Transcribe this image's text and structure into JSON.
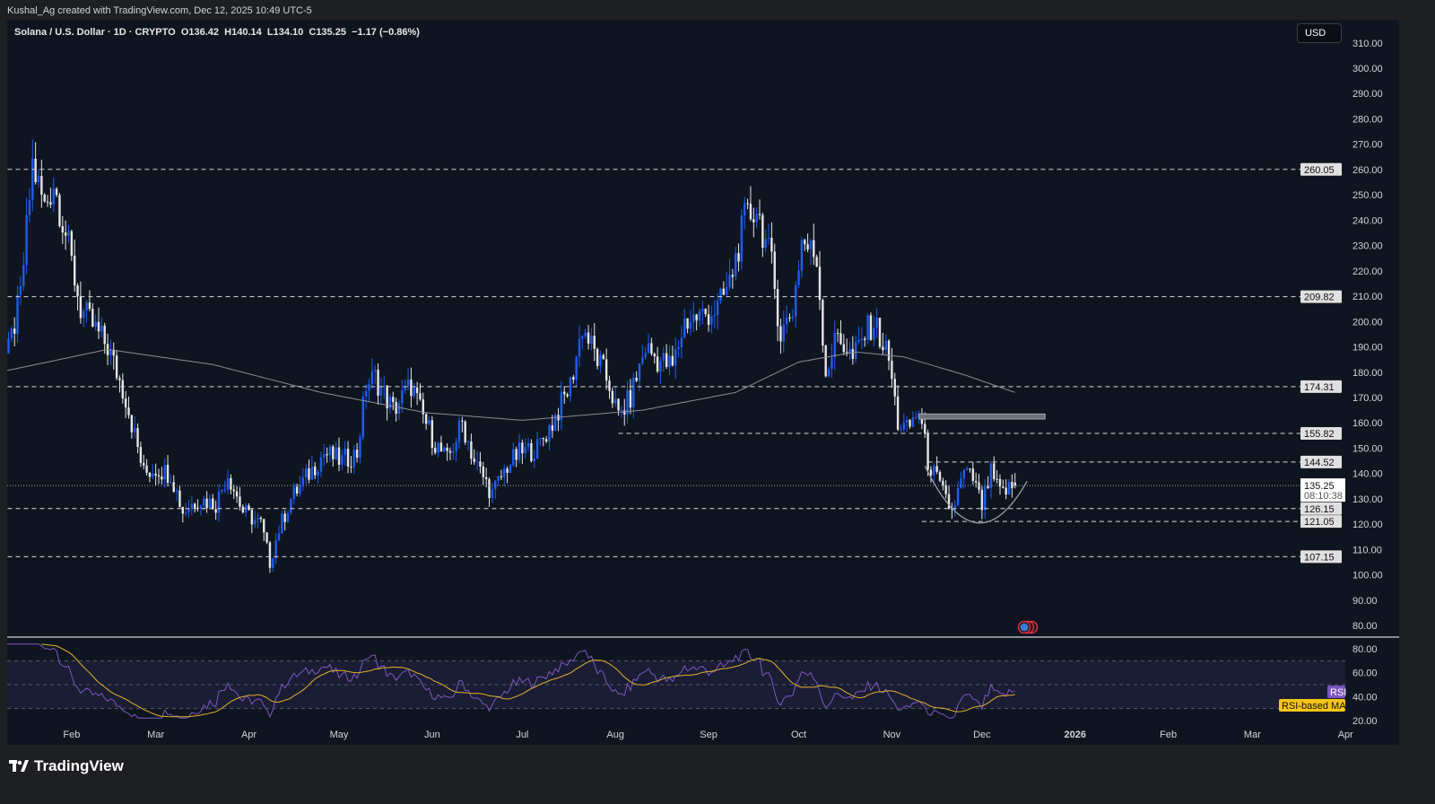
{
  "credit": "Kushal_Ag created with TradingView.com, Dec 12, 2025 10:49 UTC-5",
  "legend": {
    "symbol": "Solana / U.S. Dollar · 1D · CRYPTO",
    "open": "O136.42",
    "high": "H140.14",
    "low": "L134.10",
    "close": "C135.25",
    "change": "−1.17 (−0.86%)"
  },
  "currency_button": "USD",
  "brand": "TradingView",
  "colors": {
    "up": "#1e5cf0",
    "down": "#e6e6e6",
    "background": "#0f1520",
    "sma": "#8a8d94",
    "rsi": "#7e57c2",
    "rsi_ma": "#e0b030",
    "rsi_band": "#1a1d33"
  },
  "chart_data": {
    "type": "candlestick",
    "ylim": [
      80,
      310
    ],
    "y_ticks": [
      "310.00",
      "300.00",
      "290.00",
      "280.00",
      "270.00",
      "260.00",
      "250.00",
      "240.00",
      "230.00",
      "220.00",
      "210.00",
      "200.00",
      "190.00",
      "180.00",
      "170.00",
      "160.00",
      "150.00",
      "140.00",
      "130.00",
      "120.00",
      "110.00",
      "100.00",
      "90.00",
      "80.00"
    ],
    "x_ticks": [
      {
        "label": "Feb",
        "date": "2025-02-01"
      },
      {
        "label": "Mar",
        "date": "2025-03-01"
      },
      {
        "label": "Apr",
        "date": "2025-04-01"
      },
      {
        "label": "May",
        "date": "2025-05-01"
      },
      {
        "label": "Jun",
        "date": "2025-06-01"
      },
      {
        "label": "Jul",
        "date": "2025-07-01"
      },
      {
        "label": "Aug",
        "date": "2025-08-01"
      },
      {
        "label": "Sep",
        "date": "2025-09-01"
      },
      {
        "label": "Oct",
        "date": "2025-10-01"
      },
      {
        "label": "Nov",
        "date": "2025-11-01"
      },
      {
        "label": "Dec",
        "date": "2025-12-01"
      },
      {
        "label": "2026",
        "date": "2026-01-01"
      },
      {
        "label": "Feb",
        "date": "2026-02-01"
      },
      {
        "label": "Mar",
        "date": "2026-03-01"
      },
      {
        "label": "Apr",
        "date": "2026-04-01"
      }
    ],
    "price_path": [
      [
        "2025-01-08",
        185
      ],
      [
        "2025-01-11",
        188
      ],
      [
        "2025-01-15",
        210
      ],
      [
        "2025-01-19",
        262
      ],
      [
        "2025-01-23",
        245
      ],
      [
        "2025-01-26",
        255
      ],
      [
        "2025-01-30",
        235
      ],
      [
        "2025-02-04",
        205
      ],
      [
        "2025-02-07",
        200
      ],
      [
        "2025-02-13",
        190
      ],
      [
        "2025-02-19",
        170
      ],
      [
        "2025-02-25",
        140
      ],
      [
        "2025-03-01",
        142
      ],
      [
        "2025-03-06",
        140
      ],
      [
        "2025-03-10",
        125
      ],
      [
        "2025-03-15",
        130
      ],
      [
        "2025-03-21",
        128
      ],
      [
        "2025-03-25",
        140
      ],
      [
        "2025-03-30",
        125
      ],
      [
        "2025-04-05",
        120
      ],
      [
        "2025-04-08",
        105
      ],
      [
        "2025-04-11",
        118
      ],
      [
        "2025-04-15",
        130
      ],
      [
        "2025-04-21",
        140
      ],
      [
        "2025-04-26",
        148
      ],
      [
        "2025-05-02",
        145
      ],
      [
        "2025-05-07",
        148
      ],
      [
        "2025-05-10",
        175
      ],
      [
        "2025-05-13",
        178
      ],
      [
        "2025-05-19",
        165
      ],
      [
        "2025-05-25",
        175
      ],
      [
        "2025-05-28",
        165
      ],
      [
        "2025-06-02",
        152
      ],
      [
        "2025-06-06",
        145
      ],
      [
        "2025-06-11",
        160
      ],
      [
        "2025-06-15",
        145
      ],
      [
        "2025-06-21",
        132
      ],
      [
        "2025-06-26",
        143
      ],
      [
        "2025-06-30",
        148
      ],
      [
        "2025-07-06",
        150
      ],
      [
        "2025-07-11",
        160
      ],
      [
        "2025-07-17",
        175
      ],
      [
        "2025-07-21",
        198
      ],
      [
        "2025-07-26",
        185
      ],
      [
        "2025-07-30",
        175
      ],
      [
        "2025-08-02",
        162
      ],
      [
        "2025-08-06",
        170
      ],
      [
        "2025-08-11",
        190
      ],
      [
        "2025-08-15",
        185
      ],
      [
        "2025-08-20",
        182
      ],
      [
        "2025-08-24",
        200
      ],
      [
        "2025-08-29",
        202
      ],
      [
        "2025-09-04",
        205
      ],
      [
        "2025-09-08",
        215
      ],
      [
        "2025-09-13",
        240
      ],
      [
        "2025-09-17",
        245
      ],
      [
        "2025-09-22",
        222
      ],
      [
        "2025-09-25",
        195
      ],
      [
        "2025-09-29",
        205
      ],
      [
        "2025-10-02",
        232
      ],
      [
        "2025-10-07",
        225
      ],
      [
        "2025-10-10",
        180
      ],
      [
        "2025-10-14",
        195
      ],
      [
        "2025-10-19",
        185
      ],
      [
        "2025-10-23",
        195
      ],
      [
        "2025-10-26",
        200
      ],
      [
        "2025-10-31",
        185
      ],
      [
        "2025-11-03",
        160
      ],
      [
        "2025-11-06",
        157
      ],
      [
        "2025-11-10",
        165
      ],
      [
        "2025-11-13",
        145
      ],
      [
        "2025-11-18",
        132
      ],
      [
        "2025-11-21",
        125
      ],
      [
        "2025-11-25",
        140
      ],
      [
        "2025-11-28",
        138
      ],
      [
        "2025-12-01",
        127
      ],
      [
        "2025-12-04",
        140
      ],
      [
        "2025-12-07",
        132
      ],
      [
        "2025-12-12",
        135.25
      ]
    ],
    "sma": [
      [
        "2025-01-08",
        180
      ],
      [
        "2025-02-13",
        189
      ],
      [
        "2025-03-20",
        183
      ],
      [
        "2025-04-25",
        172
      ],
      [
        "2025-05-30",
        164
      ],
      [
        "2025-07-01",
        161
      ],
      [
        "2025-08-10",
        165
      ],
      [
        "2025-09-10",
        172
      ],
      [
        "2025-10-01",
        184
      ],
      [
        "2025-10-20",
        188
      ],
      [
        "2025-11-05",
        186
      ],
      [
        "2025-11-25",
        179
      ],
      [
        "2025-12-12",
        172
      ]
    ],
    "levels": [
      {
        "value": 260.05,
        "label": "260.05",
        "from": "2025-01-08"
      },
      {
        "value": 209.82,
        "label": "209.82",
        "from": "2025-01-08"
      },
      {
        "value": 174.31,
        "label": "174.31",
        "from": "2025-01-08"
      },
      {
        "value": 155.82,
        "label": "155.82",
        "from": "2025-08-02"
      },
      {
        "value": 144.52,
        "label": "144.52",
        "from": "2025-11-13"
      },
      {
        "value": 126.15,
        "label": "126.15",
        "from": "2025-01-08"
      },
      {
        "value": 121.05,
        "label": "121.05",
        "from": "2025-11-11"
      },
      {
        "value": 107.15,
        "label": "107.15",
        "from": "2025-01-08"
      }
    ],
    "last_price": {
      "value": 135.25,
      "label": "135.25",
      "countdown": "08:10:38"
    },
    "zone": {
      "from": "2025-11-10",
      "to": "2025-12-22",
      "low": 161.5,
      "high": 163.5
    },
    "rounded_bottom": {
      "from": "2025-11-12",
      "to": "2025-12-16",
      "left": 143,
      "bottom": 121,
      "right": 137
    },
    "rsi": {
      "ylim": [
        20,
        85
      ],
      "y_ticks": [
        "80.00",
        "60.00",
        "40.00",
        "20.00"
      ],
      "bands": [
        70,
        50,
        30
      ],
      "label": "RSI",
      "ma_label": "RSI-based MA"
    }
  }
}
